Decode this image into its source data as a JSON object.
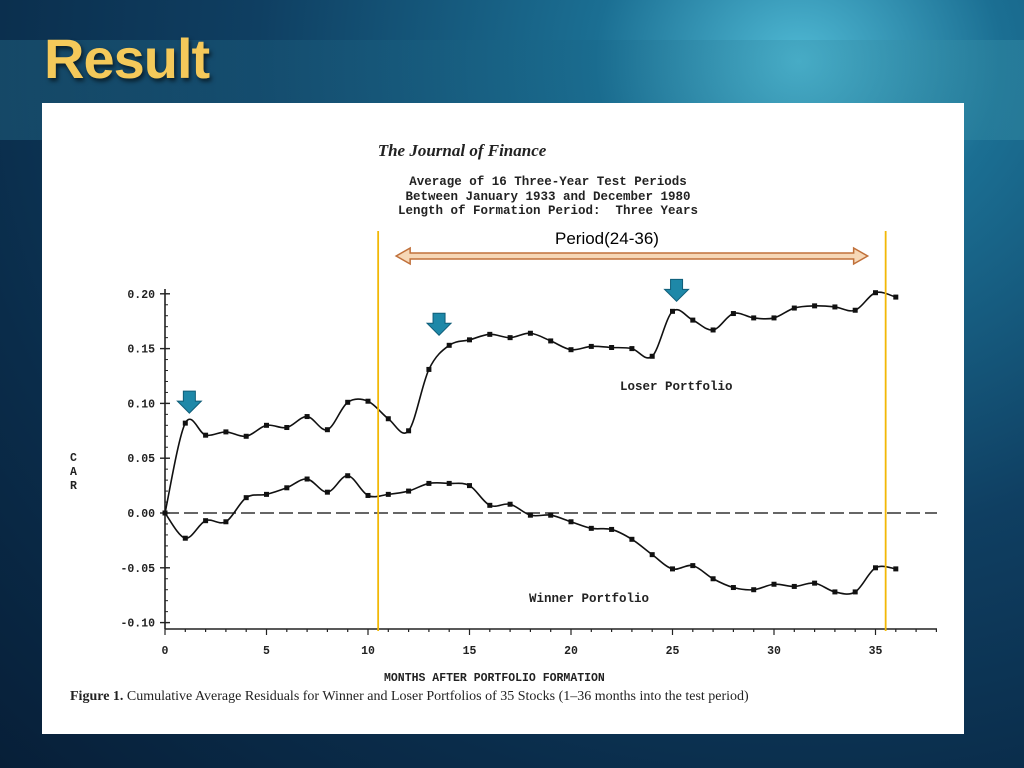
{
  "slide": {
    "title": "Result"
  },
  "figure": {
    "journal": "The Journal of Finance",
    "subtitle_lines": [
      "Average of 16 Three-Year Test Periods",
      "Between January 1933 and December 1980",
      "Length of Formation Period:  Three Years"
    ],
    "caption_label": "Figure 1.",
    "caption_text": " Cumulative Average Residuals for Winner and Loser Portfolios of 35 Stocks (1–36 months into the test period)"
  },
  "annotation": {
    "period_label": "Period(24-36)",
    "vline_months": [
      10.5,
      35.5
    ],
    "arrow_months": [
      1.2,
      13.5,
      25.2
    ],
    "line_color": "#f2b807",
    "arrow_color": "#1e88a8"
  },
  "chart_data": {
    "type": "line",
    "title": "",
    "xlabel": "MONTHS AFTER PORTFOLIO FORMATION",
    "ylabel": "CAR",
    "xlim": [
      0,
      38
    ],
    "ylim": [
      -0.1,
      0.2
    ],
    "xticks": [
      "0",
      "5",
      "10",
      "15",
      "20",
      "25",
      "30",
      "35"
    ],
    "yticks": [
      "0.20",
      "0.15",
      "0.10",
      "0.05",
      "0.00",
      "-0.05",
      "-0.10"
    ],
    "zero_line": "dashed",
    "series": [
      {
        "name": "Loser Portfolio",
        "x": [
          0,
          1,
          2,
          3,
          4,
          5,
          6,
          7,
          8,
          9,
          10,
          11,
          12,
          13,
          14,
          15,
          16,
          17,
          18,
          19,
          20,
          21,
          22,
          23,
          24,
          25,
          26,
          27,
          28,
          29,
          30,
          31,
          32,
          33,
          34,
          35,
          36
        ],
        "values": [
          0.0,
          0.082,
          0.071,
          0.074,
          0.07,
          0.08,
          0.078,
          0.088,
          0.076,
          0.101,
          0.102,
          0.086,
          0.075,
          0.131,
          0.153,
          0.158,
          0.163,
          0.16,
          0.164,
          0.157,
          0.149,
          0.152,
          0.151,
          0.15,
          0.143,
          0.184,
          0.176,
          0.167,
          0.182,
          0.178,
          0.178,
          0.187,
          0.189,
          0.188,
          0.185,
          0.201,
          0.197
        ]
      },
      {
        "name": "Winner Portfolio",
        "x": [
          0,
          1,
          2,
          3,
          4,
          5,
          6,
          7,
          8,
          9,
          10,
          11,
          12,
          13,
          14,
          15,
          16,
          17,
          18,
          19,
          20,
          21,
          22,
          23,
          24,
          25,
          26,
          27,
          28,
          29,
          30,
          31,
          32,
          33,
          34,
          35,
          36
        ],
        "values": [
          0.0,
          -0.023,
          -0.007,
          -0.008,
          0.014,
          0.017,
          0.023,
          0.031,
          0.019,
          0.034,
          0.016,
          0.017,
          0.02,
          0.027,
          0.027,
          0.025,
          0.007,
          0.008,
          -0.002,
          -0.002,
          -0.008,
          -0.014,
          -0.015,
          -0.024,
          -0.038,
          -0.051,
          -0.048,
          -0.06,
          -0.068,
          -0.07,
          -0.065,
          -0.067,
          -0.064,
          -0.072,
          -0.072,
          -0.05,
          -0.051
        ]
      }
    ]
  }
}
